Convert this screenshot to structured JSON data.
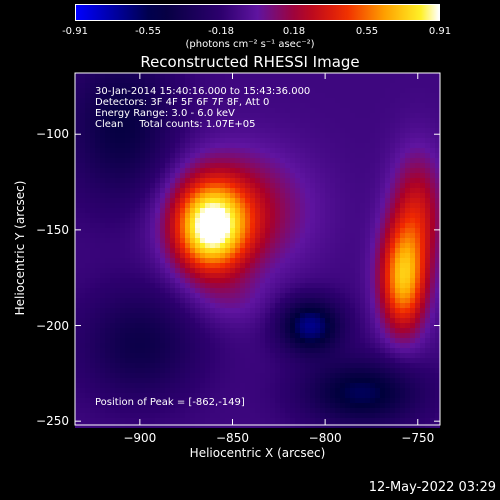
{
  "colorbar": {
    "ticks": [
      "-0.91",
      "-0.55",
      "-0.18",
      "0.18",
      "0.55",
      "0.91"
    ],
    "units": "(photons cm⁻² s⁻¹ asec⁻²)",
    "range": [
      -0.91,
      0.91
    ]
  },
  "info": {
    "time": "30-Jan-2014 15:40:16.000 to 15:43:36.000",
    "detectors": "Detectors: 3F 4F 5F 6F 7F 8F, Att 0",
    "energy": "Energy Range: 3.0 - 6.0 keV",
    "algorithm": "Clean     Total counts: 1.07E+05",
    "peak": "Position of Peak = [-862,-149]"
  },
  "footer": "12-May-2022 03:29",
  "chart_data": {
    "type": "heatmap",
    "title": "Reconstructed RHESSI Image",
    "xlabel": "Heliocentric X (arcsec)",
    "ylabel": "Heliocentric Y (arcsec)",
    "xlim": [
      -935,
      -738
    ],
    "ylim": [
      -252,
      -68
    ],
    "x_ticks": [
      {
        "value": -900,
        "label": "−900"
      },
      {
        "value": -850,
        "label": "−850"
      },
      {
        "value": -800,
        "label": "−800"
      },
      {
        "value": -750,
        "label": "−750"
      }
    ],
    "y_ticks": [
      {
        "value": -100,
        "label": "−100"
      },
      {
        "value": -150,
        "label": "−150"
      },
      {
        "value": -200,
        "label": "−200"
      },
      {
        "value": -250,
        "label": "−250"
      }
    ],
    "peak_position": [
      -862,
      -149
    ],
    "sources": [
      {
        "x": -862,
        "y": -149,
        "peak": 0.91,
        "sx": 14,
        "sy": 17
      },
      {
        "x": -846,
        "y": -140,
        "peak": 0.35,
        "sx": 26,
        "sy": 22
      },
      {
        "x": -758,
        "y": -176,
        "peak": 0.78,
        "sx": 9,
        "sy": 20
      },
      {
        "x": -750,
        "y": -140,
        "peak": 0.4,
        "sx": 10,
        "sy": 22
      },
      {
        "x": -850,
        "y": -188,
        "peak": 0.1,
        "sx": 16,
        "sy": 10
      }
    ],
    "negatives": [
      {
        "x": -808,
        "y": -200,
        "peak": -0.55,
        "sx": 12,
        "sy": 10
      },
      {
        "x": -780,
        "y": -235,
        "peak": -0.45,
        "sx": 22,
        "sy": 12
      },
      {
        "x": -900,
        "y": -210,
        "peak": -0.3,
        "sx": 22,
        "sy": 20
      },
      {
        "x": -910,
        "y": -95,
        "peak": -0.35,
        "sx": 20,
        "sy": 28
      }
    ],
    "background": -0.12
  }
}
